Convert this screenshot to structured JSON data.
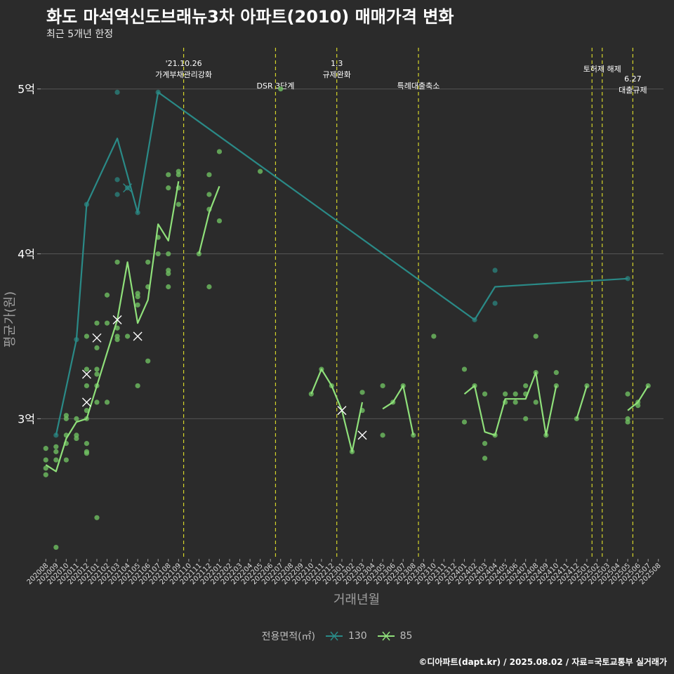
{
  "title": "화도 마석역신도브래뉴3차 아파트(2010) 매매가격 변화",
  "subtitle": "최근 5개년 한정",
  "caption": "©디아파트(dapt.kr) / 2025.08.02 / 자료=국토교통부 실거래가",
  "legend": {
    "title": "전용면적(㎡)",
    "items": [
      "130",
      "85"
    ]
  },
  "colors": {
    "background": "#2b2b2b",
    "grid": "#555555",
    "s130": "#2a8a87",
    "s85": "#8fe07a",
    "event": "#d4d42a",
    "pt130": "#2a7f7a",
    "pt85": "#6fbf62"
  },
  "chart_data": {
    "type": "line",
    "xlabel": "거래년월",
    "ylabel": "평균가(원)",
    "ylim": [
      2.15,
      5.25
    ],
    "yticks": [
      {
        "v": 3,
        "label": "3억"
      },
      {
        "v": 4,
        "label": "4억"
      },
      {
        "v": 5,
        "label": "5억"
      }
    ],
    "x": [
      "202008",
      "202009",
      "202010",
      "202011",
      "202012",
      "202101",
      "202102",
      "202103",
      "202104",
      "202105",
      "202106",
      "202107",
      "202108",
      "202109",
      "202110",
      "202111",
      "202112",
      "202201",
      "202202",
      "202203",
      "202204",
      "202205",
      "202206",
      "202207",
      "202208",
      "202209",
      "202210",
      "202211",
      "202212",
      "202301",
      "202302",
      "202303",
      "202304",
      "202305",
      "202306",
      "202307",
      "202308",
      "202309",
      "202310",
      "202311",
      "202312",
      "202401",
      "202402",
      "202403",
      "202404",
      "202405",
      "202406",
      "202407",
      "202408",
      "202409",
      "202410",
      "202411",
      "202412",
      "202501",
      "202502",
      "202503",
      "202504",
      "202505",
      "202506",
      "202507",
      "202508"
    ],
    "events": [
      {
        "at": 13.5,
        "lines": [
          "'21.10.26",
          "가계부채관리강화"
        ],
        "level": 0
      },
      {
        "at": 22.5,
        "lines": [
          "DSR 3단계"
        ],
        "level": 1
      },
      {
        "at": 28.5,
        "lines": [
          "1.3",
          "규제완화"
        ],
        "level": 0
      },
      {
        "at": 36.5,
        "lines": [
          "특례대출축소"
        ],
        "level": 1
      },
      {
        "at": 53.5,
        "lines": [],
        "level": 0
      },
      {
        "at": 54.5,
        "lines": [
          "토허제 해제"
        ],
        "level": 0
      },
      {
        "at": 57.5,
        "lines": [
          "6.27",
          "대출규제"
        ],
        "level": 0
      }
    ],
    "series": [
      {
        "name": "130",
        "segments": [
          [
            [
              1,
              2.9
            ],
            [
              3,
              3.48
            ],
            [
              4,
              4.3
            ],
            [
              7,
              4.7
            ],
            [
              9,
              4.25
            ],
            [
              11,
              4.98
            ],
            [
              42,
              3.6
            ],
            [
              44,
              3.8
            ],
            [
              57,
              3.85
            ]
          ]
        ],
        "cross": [
          [
            8,
            4.4
          ]
        ],
        "points": [
          [
            1,
            2.9
          ],
          [
            3,
            3.48
          ],
          [
            4,
            4.3
          ],
          [
            7,
            4.98
          ],
          [
            7,
            4.45
          ],
          [
            7,
            4.36
          ],
          [
            8,
            4.4
          ],
          [
            9,
            4.25
          ],
          [
            11,
            4.98
          ],
          [
            42,
            3.6
          ],
          [
            44,
            3.9
          ],
          [
            44,
            3.7
          ],
          [
            57,
            3.85
          ]
        ]
      },
      {
        "name": "85",
        "segments": [
          [
            [
              0,
              2.72
            ],
            [
              1,
              2.68
            ],
            [
              2,
              2.88
            ],
            [
              3,
              2.98
            ],
            [
              4,
              3.0
            ],
            [
              5,
              3.2
            ],
            [
              6,
              3.4
            ],
            [
              7,
              3.6
            ],
            [
              8,
              3.95
            ],
            [
              9,
              3.58
            ],
            [
              10,
              3.72
            ],
            [
              11,
              4.18
            ],
            [
              12,
              4.08
            ],
            [
              13,
              4.44
            ]
          ],
          [
            [
              15,
              4.0
            ],
            [
              16,
              4.25
            ],
            [
              17,
              4.41
            ]
          ],
          [
            [
              26,
              3.15
            ],
            [
              27,
              3.3
            ],
            [
              28,
              3.2
            ],
            [
              29,
              3.05
            ],
            [
              30,
              2.8
            ],
            [
              31,
              3.1
            ]
          ],
          [
            [
              33,
              3.06
            ],
            [
              34,
              3.1
            ],
            [
              35,
              3.2
            ],
            [
              36,
              2.9
            ]
          ],
          [
            [
              41,
              3.15
            ],
            [
              42,
              3.2
            ],
            [
              43,
              2.92
            ],
            [
              44,
              2.9
            ],
            [
              45,
              3.12
            ],
            [
              46,
              3.12
            ],
            [
              47,
              3.12
            ],
            [
              48,
              3.28
            ],
            [
              49,
              2.9
            ],
            [
              50,
              3.2
            ]
          ],
          [
            [
              52,
              3.0
            ],
            [
              53,
              3.2
            ]
          ],
          [
            [
              57,
              3.05
            ],
            [
              58,
              3.1
            ],
            [
              59,
              3.2
            ]
          ]
        ],
        "cross": [
          [
            4,
            3.27
          ],
          [
            4,
            3.1
          ],
          [
            5,
            3.49
          ],
          [
            7,
            3.6
          ],
          [
            9,
            3.5
          ],
          [
            29,
            3.05
          ],
          [
            31,
            2.9
          ]
        ],
        "points": [
          [
            0,
            2.82
          ],
          [
            0,
            2.75
          ],
          [
            0,
            2.7
          ],
          [
            0,
            2.66
          ],
          [
            1,
            2.83
          ],
          [
            1,
            2.8
          ],
          [
            1,
            2.75
          ],
          [
            1,
            2.22
          ],
          [
            2,
            3.02
          ],
          [
            2,
            3.0
          ],
          [
            2,
            2.9
          ],
          [
            2,
            2.85
          ],
          [
            2,
            2.75
          ],
          [
            3,
            3.0
          ],
          [
            3,
            2.9
          ],
          [
            3,
            2.88
          ],
          [
            4,
            3.5
          ],
          [
            4,
            3.3
          ],
          [
            4,
            3.2
          ],
          [
            4,
            3.05
          ],
          [
            4,
            3.0
          ],
          [
            4,
            2.85
          ],
          [
            4,
            2.8
          ],
          [
            4,
            2.79
          ],
          [
            5,
            3.58
          ],
          [
            5,
            3.43
          ],
          [
            5,
            3.3
          ],
          [
            5,
            3.27
          ],
          [
            5,
            3.2
          ],
          [
            5,
            3.1
          ],
          [
            5,
            2.4
          ],
          [
            6,
            3.75
          ],
          [
            6,
            3.58
          ],
          [
            6,
            3.1
          ],
          [
            7,
            3.95
          ],
          [
            7,
            3.55
          ],
          [
            7,
            3.5
          ],
          [
            7,
            3.48
          ],
          [
            8,
            3.5
          ],
          [
            9,
            3.76
          ],
          [
            9,
            3.74
          ],
          [
            9,
            3.69
          ],
          [
            9,
            3.2
          ],
          [
            10,
            3.95
          ],
          [
            10,
            3.8
          ],
          [
            10,
            3.35
          ],
          [
            11,
            4.1
          ],
          [
            11,
            4.0
          ],
          [
            12,
            4.48
          ],
          [
            12,
            4.4
          ],
          [
            12,
            4.0
          ],
          [
            12,
            3.9
          ],
          [
            12,
            3.88
          ],
          [
            12,
            3.8
          ],
          [
            13,
            4.5
          ],
          [
            13,
            4.48
          ],
          [
            13,
            4.4
          ],
          [
            13,
            4.3
          ],
          [
            15,
            4.0
          ],
          [
            16,
            4.48
          ],
          [
            16,
            4.36
          ],
          [
            16,
            4.27
          ],
          [
            16,
            3.8
          ],
          [
            17,
            4.62
          ],
          [
            17,
            4.2
          ],
          [
            21,
            4.5
          ],
          [
            23,
            5.0
          ],
          [
            26,
            3.15
          ],
          [
            27,
            3.3
          ],
          [
            28,
            3.2
          ],
          [
            30,
            2.8
          ],
          [
            31,
            3.16
          ],
          [
            31,
            3.05
          ],
          [
            33,
            3.2
          ],
          [
            33,
            2.9
          ],
          [
            34,
            3.1
          ],
          [
            35,
            3.2
          ],
          [
            36,
            2.9
          ],
          [
            38,
            3.5
          ],
          [
            41,
            3.3
          ],
          [
            41,
            2.98
          ],
          [
            42,
            3.2
          ],
          [
            43,
            3.15
          ],
          [
            43,
            2.85
          ],
          [
            43,
            2.76
          ],
          [
            44,
            2.9
          ],
          [
            45,
            3.15
          ],
          [
            45,
            3.1
          ],
          [
            46,
            3.15
          ],
          [
            46,
            3.1
          ],
          [
            47,
            3.2
          ],
          [
            47,
            3.15
          ],
          [
            47,
            3.0
          ],
          [
            48,
            3.5
          ],
          [
            48,
            3.28
          ],
          [
            48,
            3.1
          ],
          [
            49,
            2.9
          ],
          [
            50,
            3.28
          ],
          [
            50,
            3.2
          ],
          [
            52,
            3.0
          ],
          [
            53,
            3.2
          ],
          [
            57,
            3.15
          ],
          [
            57,
            3.0
          ],
          [
            57,
            2.98
          ],
          [
            58,
            3.1
          ],
          [
            58,
            3.08
          ],
          [
            59,
            3.2
          ]
        ]
      }
    ]
  }
}
